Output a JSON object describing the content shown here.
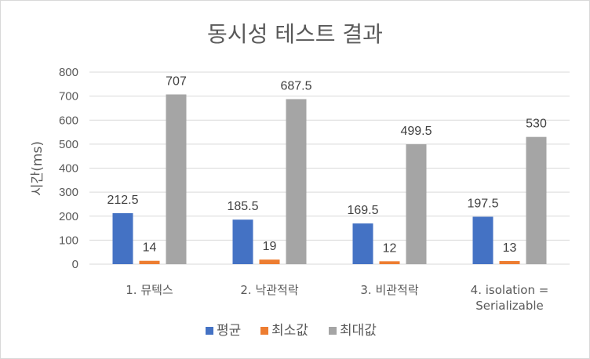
{
  "chart_data": {
    "type": "bar",
    "title": "동시성 테스트 결과",
    "xlabel": "",
    "ylabel": "시간(ms)",
    "ylim": [
      0,
      800
    ],
    "yticks": [
      "0",
      "100",
      "200",
      "300",
      "400",
      "500",
      "600",
      "700",
      "800"
    ],
    "grid": true,
    "legend_position": "bottom",
    "categories": [
      [
        "1. 뮤텍스"
      ],
      [
        "2. 낙관적락"
      ],
      [
        "3. 비관적락"
      ],
      [
        "4. isolation =",
        "Serializable"
      ]
    ],
    "series": [
      {
        "name": "평균",
        "color": "#4472C4",
        "values": [
          212.5,
          185.5,
          169.5,
          197.5
        ],
        "labels": [
          "212.5",
          "185.5",
          "169.5",
          "197.5"
        ]
      },
      {
        "name": "최소값",
        "color": "#ED7D31",
        "values": [
          14,
          19,
          12,
          13
        ],
        "labels": [
          "14",
          "19",
          "12",
          "13"
        ]
      },
      {
        "name": "최대값",
        "color": "#A5A5A5",
        "values": [
          707,
          687.5,
          499.5,
          530
        ],
        "labels": [
          "707",
          "687.5",
          "499.5",
          "530"
        ]
      }
    ]
  }
}
